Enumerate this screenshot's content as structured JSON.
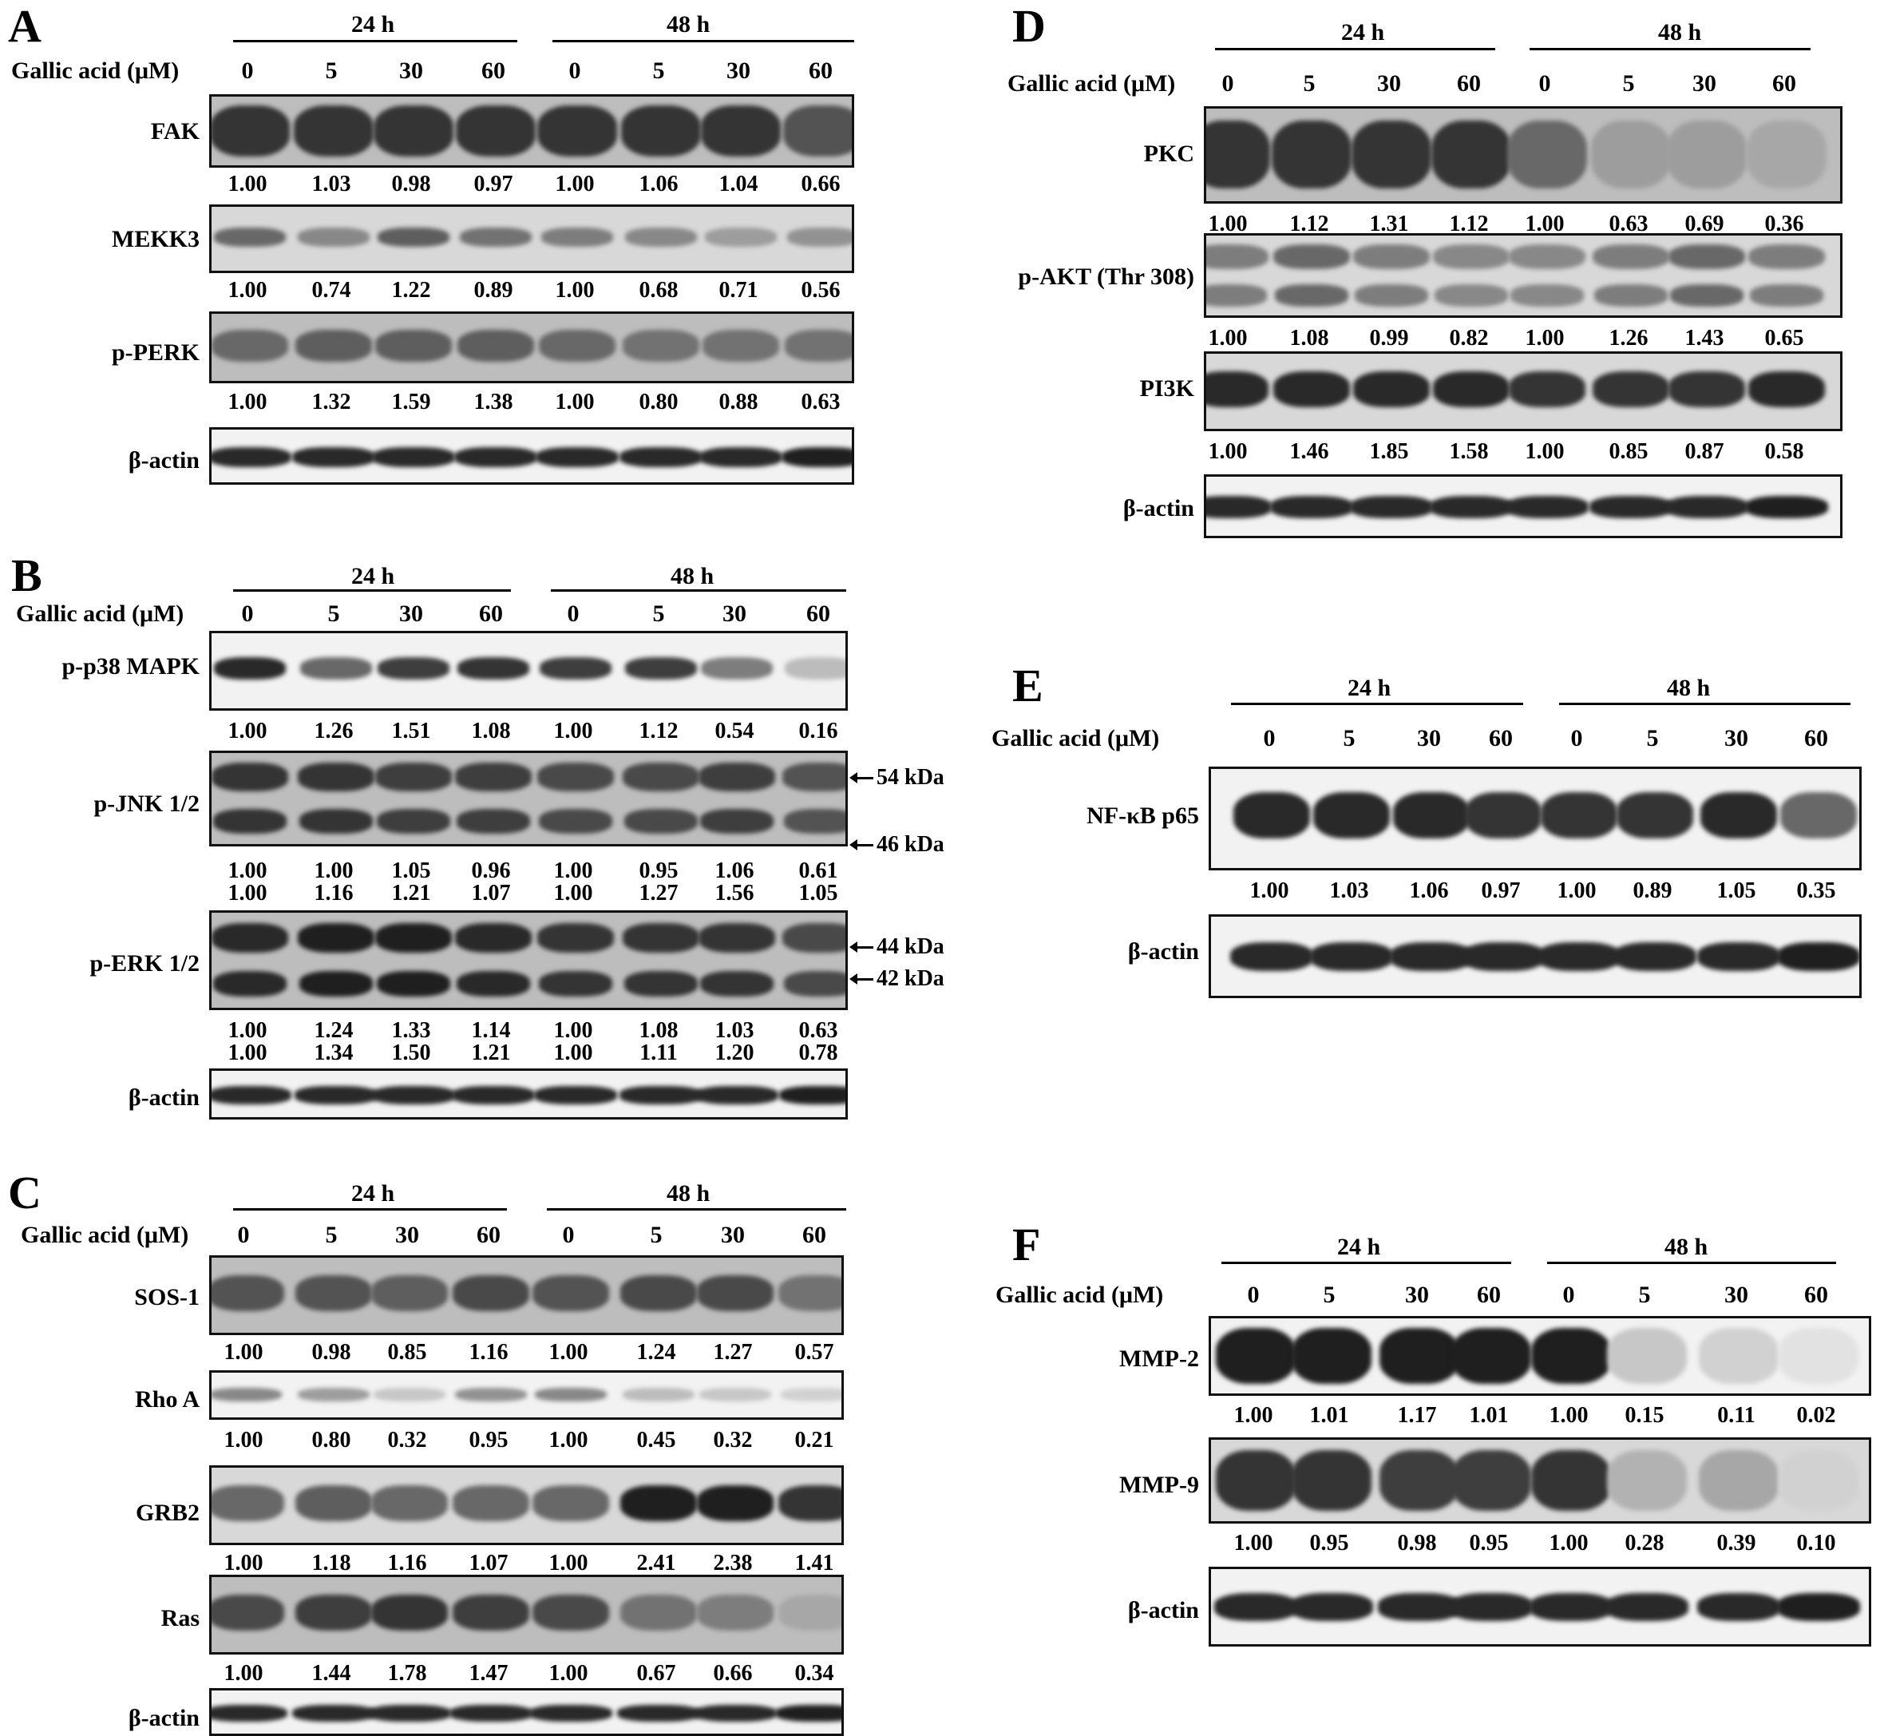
{
  "axis_label": "Gallic acid (μM)",
  "time_labels": [
    "24 h",
    "48 h"
  ],
  "doses": [
    "0",
    "5",
    "30",
    "60",
    "0",
    "5",
    "30",
    "60"
  ],
  "panels": {
    "A": {
      "label": "A",
      "rows": [
        {
          "protein": "FAK",
          "values": [
            "1.00",
            "1.03",
            "0.98",
            "0.97",
            "1.00",
            "1.06",
            "1.04",
            "0.66"
          ]
        },
        {
          "protein": "MEKK3",
          "values": [
            "1.00",
            "0.74",
            "1.22",
            "0.89",
            "1.00",
            "0.68",
            "0.71",
            "0.56"
          ]
        },
        {
          "protein": "p-PERK",
          "values": [
            "1.00",
            "1.32",
            "1.59",
            "1.38",
            "1.00",
            "0.80",
            "0.88",
            "0.63"
          ]
        },
        {
          "protein": "β-actin",
          "values": []
        }
      ]
    },
    "B": {
      "label": "B",
      "rows": [
        {
          "protein": "p-p38 MAPK",
          "values": [
            "1.00",
            "1.26",
            "1.51",
            "1.08",
            "1.00",
            "1.12",
            "0.54",
            "0.16"
          ]
        },
        {
          "protein": "p-JNK 1/2",
          "values": [
            "1.00",
            "1.00",
            "1.05",
            "0.96",
            "1.00",
            "0.95",
            "1.06",
            "0.61"
          ],
          "values2": [
            "1.00",
            "1.16",
            "1.21",
            "1.07",
            "1.00",
            "1.27",
            "1.56",
            "1.05"
          ],
          "kda": [
            "54 kDa",
            "46 kDa"
          ]
        },
        {
          "protein": "p-ERK 1/2",
          "values": [
            "1.00",
            "1.24",
            "1.33",
            "1.14",
            "1.00",
            "1.08",
            "1.03",
            "0.63"
          ],
          "values2": [
            "1.00",
            "1.34",
            "1.50",
            "1.21",
            "1.00",
            "1.11",
            "1.20",
            "0.78"
          ],
          "kda": [
            "44 kDa",
            "42 kDa"
          ]
        },
        {
          "protein": "β-actin",
          "values": []
        }
      ]
    },
    "C": {
      "label": "C",
      "rows": [
        {
          "protein": "SOS-1",
          "values": [
            "1.00",
            "0.98",
            "0.85",
            "1.16",
            "1.00",
            "1.24",
            "1.27",
            "0.57"
          ]
        },
        {
          "protein": "Rho A",
          "values": [
            "1.00",
            "0.80",
            "0.32",
            "0.95",
            "1.00",
            "0.45",
            "0.32",
            "0.21"
          ]
        },
        {
          "protein": "GRB2",
          "values": [
            "1.00",
            "1.18",
            "1.16",
            "1.07",
            "1.00",
            "2.41",
            "2.38",
            "1.41"
          ]
        },
        {
          "protein": "Ras",
          "values": [
            "1.00",
            "1.44",
            "1.78",
            "1.47",
            "1.00",
            "0.67",
            "0.66",
            "0.34"
          ]
        },
        {
          "protein": "β-actin",
          "values": []
        }
      ]
    },
    "D": {
      "label": "D",
      "rows": [
        {
          "protein": "PKC",
          "values": [
            "1.00",
            "1.12",
            "1.31",
            "1.12",
            "1.00",
            "0.63",
            "0.69",
            "0.36"
          ]
        },
        {
          "protein": "p-AKT (Thr 308)",
          "values": [
            "1.00",
            "1.08",
            "0.99",
            "0.82",
            "1.00",
            "1.26",
            "1.43",
            "0.65"
          ]
        },
        {
          "protein": "PI3K",
          "values": [
            "1.00",
            "1.46",
            "1.85",
            "1.58",
            "1.00",
            "0.85",
            "0.87",
            "0.58"
          ]
        },
        {
          "protein": "β-actin",
          "values": []
        }
      ]
    },
    "E": {
      "label": "E",
      "rows": [
        {
          "protein": "NF-κB p65",
          "values": [
            "1.00",
            "1.03",
            "1.06",
            "0.97",
            "1.00",
            "0.89",
            "1.05",
            "0.35"
          ]
        },
        {
          "protein": "β-actin",
          "values": []
        }
      ]
    },
    "F": {
      "label": "F",
      "rows": [
        {
          "protein": "MMP-2",
          "values": [
            "1.00",
            "1.01",
            "1.17",
            "1.01",
            "1.00",
            "0.15",
            "0.11",
            "0.02"
          ]
        },
        {
          "protein": "MMP-9",
          "values": [
            "1.00",
            "0.95",
            "0.98",
            "0.95",
            "1.00",
            "0.28",
            "0.39",
            "0.10"
          ]
        },
        {
          "protein": "β-actin",
          "values": []
        }
      ]
    }
  }
}
